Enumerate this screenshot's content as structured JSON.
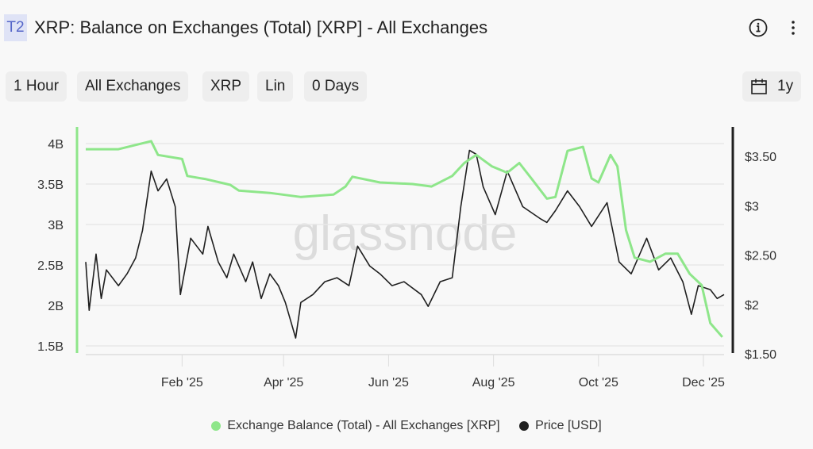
{
  "header": {
    "badge": "T2",
    "title": "XRP: Balance on Exchanges (Total) [XRP] - All Exchanges",
    "icons": [
      "info-icon",
      "more-vertical-icon"
    ]
  },
  "toolbar": {
    "filters": [
      "1 Hour",
      "All Exchanges",
      "XRP",
      "Lin",
      "0 Days"
    ],
    "range_icon": "calendar-icon",
    "range_label": "1y"
  },
  "watermark": "glassnode",
  "colors": {
    "balance": "#8ee68a",
    "price": "#1f1f1f",
    "grid": "#e8e8e8"
  },
  "chart_data": {
    "type": "line",
    "title": "XRP: Balance on Exchanges (Total) [XRP] - All Exchanges",
    "x_ticks": [
      "Feb '25",
      "Apr '25",
      "Jun '25",
      "Aug '25",
      "Oct '25",
      "Dec '25"
    ],
    "x_tick_dates": [
      "2025-02-01",
      "2025-04-01",
      "2025-06-01",
      "2025-08-01",
      "2025-10-01",
      "2025-12-01"
    ],
    "xlim": [
      "2024-12-07",
      "2025-12-13"
    ],
    "y_left": {
      "ticks": [
        "4B",
        "3.5B",
        "3B",
        "2.5B",
        "2B",
        "1.5B"
      ],
      "tick_values": [
        4,
        3.5,
        3,
        2.5,
        2,
        1.5
      ],
      "ylim": [
        1.45,
        4.2
      ]
    },
    "y_right": {
      "ticks": [
        "$3.50",
        "$3",
        "$2.50",
        "$2",
        "$1.50"
      ],
      "tick_values": [
        3.5,
        3,
        2.5,
        2,
        1.5
      ],
      "ylim": [
        1.4,
        3.8
      ]
    },
    "grid": true,
    "legend_placement": "bottom",
    "series": [
      {
        "name": "Exchange Balance (Total) - All Exchanges [XRP]",
        "axis": "left",
        "color": "#8ee68a",
        "points": [
          [
            "2024-12-07",
            3.93
          ],
          [
            "2024-12-26",
            3.93
          ],
          [
            "2025-01-14",
            4.03
          ],
          [
            "2025-01-18",
            3.86
          ],
          [
            "2025-02-01",
            3.81
          ],
          [
            "2025-02-04",
            3.6
          ],
          [
            "2025-02-15",
            3.56
          ],
          [
            "2025-03-01",
            3.49
          ],
          [
            "2025-03-06",
            3.42
          ],
          [
            "2025-03-24",
            3.39
          ],
          [
            "2025-04-11",
            3.34
          ],
          [
            "2025-04-30",
            3.37
          ],
          [
            "2025-05-07",
            3.47
          ],
          [
            "2025-05-11",
            3.59
          ],
          [
            "2025-05-27",
            3.52
          ],
          [
            "2025-06-15",
            3.5
          ],
          [
            "2025-06-26",
            3.47
          ],
          [
            "2025-07-08",
            3.6
          ],
          [
            "2025-07-15",
            3.76
          ],
          [
            "2025-07-22",
            3.86
          ],
          [
            "2025-07-31",
            3.72
          ],
          [
            "2025-08-09",
            3.64
          ],
          [
            "2025-08-16",
            3.76
          ],
          [
            "2025-08-23",
            3.57
          ],
          [
            "2025-09-01",
            3.32
          ],
          [
            "2025-09-06",
            3.34
          ],
          [
            "2025-09-13",
            3.91
          ],
          [
            "2025-09-22",
            3.96
          ],
          [
            "2025-09-27",
            3.57
          ],
          [
            "2025-10-01",
            3.52
          ],
          [
            "2025-10-08",
            3.86
          ],
          [
            "2025-10-12",
            3.72
          ],
          [
            "2025-10-17",
            2.93
          ],
          [
            "2025-10-22",
            2.59
          ],
          [
            "2025-10-31",
            2.54
          ],
          [
            "2025-11-09",
            2.64
          ],
          [
            "2025-11-16",
            2.64
          ],
          [
            "2025-11-23",
            2.39
          ],
          [
            "2025-11-30",
            2.25
          ],
          [
            "2025-12-05",
            1.78
          ],
          [
            "2025-12-12",
            1.61
          ]
        ]
      },
      {
        "name": "Price [USD]",
        "axis": "right",
        "color": "#1f1f1f",
        "points": [
          [
            "2024-12-07",
            2.43
          ],
          [
            "2024-12-09",
            1.94
          ],
          [
            "2024-12-13",
            2.51
          ],
          [
            "2024-12-16",
            2.06
          ],
          [
            "2024-12-19",
            2.35
          ],
          [
            "2024-12-26",
            2.19
          ],
          [
            "2024-12-31",
            2.31
          ],
          [
            "2025-01-05",
            2.47
          ],
          [
            "2025-01-09",
            2.75
          ],
          [
            "2025-01-14",
            3.35
          ],
          [
            "2025-01-18",
            3.15
          ],
          [
            "2025-01-23",
            3.27
          ],
          [
            "2025-01-28",
            2.99
          ],
          [
            "2025-01-31",
            2.1
          ],
          [
            "2025-02-06",
            2.67
          ],
          [
            "2025-02-13",
            2.51
          ],
          [
            "2025-02-16",
            2.79
          ],
          [
            "2025-02-22",
            2.43
          ],
          [
            "2025-02-27",
            2.27
          ],
          [
            "2025-03-03",
            2.51
          ],
          [
            "2025-03-10",
            2.23
          ],
          [
            "2025-03-14",
            2.43
          ],
          [
            "2025-03-19",
            2.06
          ],
          [
            "2025-03-24",
            2.31
          ],
          [
            "2025-03-29",
            2.19
          ],
          [
            "2025-04-02",
            2.02
          ],
          [
            "2025-04-08",
            1.66
          ],
          [
            "2025-04-11",
            2.02
          ],
          [
            "2025-04-18",
            2.1
          ],
          [
            "2025-04-25",
            2.23
          ],
          [
            "2025-05-02",
            2.27
          ],
          [
            "2025-05-09",
            2.19
          ],
          [
            "2025-05-14",
            2.59
          ],
          [
            "2025-05-21",
            2.39
          ],
          [
            "2025-05-27",
            2.31
          ],
          [
            "2025-06-03",
            2.19
          ],
          [
            "2025-06-10",
            2.23
          ],
          [
            "2025-06-20",
            2.1
          ],
          [
            "2025-06-24",
            1.98
          ],
          [
            "2025-07-01",
            2.23
          ],
          [
            "2025-07-08",
            2.27
          ],
          [
            "2025-07-13",
            2.99
          ],
          [
            "2025-07-18",
            3.56
          ],
          [
            "2025-07-22",
            3.52
          ],
          [
            "2025-07-26",
            3.19
          ],
          [
            "2025-08-02",
            2.91
          ],
          [
            "2025-08-09",
            3.35
          ],
          [
            "2025-08-18",
            2.99
          ],
          [
            "2025-08-28",
            2.87
          ],
          [
            "2025-09-01",
            2.83
          ],
          [
            "2025-09-06",
            2.95
          ],
          [
            "2025-09-13",
            3.15
          ],
          [
            "2025-09-20",
            2.99
          ],
          [
            "2025-09-27",
            2.79
          ],
          [
            "2025-10-06",
            3.03
          ],
          [
            "2025-10-13",
            2.43
          ],
          [
            "2025-10-20",
            2.31
          ],
          [
            "2025-10-29",
            2.67
          ],
          [
            "2025-11-05",
            2.35
          ],
          [
            "2025-11-12",
            2.47
          ],
          [
            "2025-11-19",
            2.23
          ],
          [
            "2025-11-24",
            1.9
          ],
          [
            "2025-11-28",
            2.19
          ],
          [
            "2025-12-05",
            2.15
          ],
          [
            "2025-12-09",
            2.06
          ],
          [
            "2025-12-13",
            2.1
          ]
        ]
      }
    ]
  }
}
